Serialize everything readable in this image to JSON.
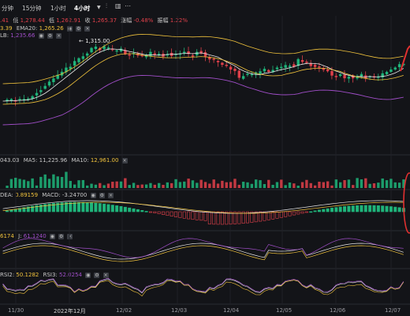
{
  "toolbar": {
    "items": [
      "分钟",
      "15分钟",
      "1小时",
      "4小时"
    ],
    "active_index": 3
  },
  "ohlc": {
    "high": ".41",
    "low_label": "低",
    "low": "1,278.44",
    "close_label": "收",
    "close_prefix": "1,262.91",
    "close": "1,265.37",
    "change_label": "涨幅",
    "change": "-0.48%",
    "amp_label": "振幅",
    "amp": "1.22%"
  },
  "main_indicators": {
    "ema_prev": "3.39",
    "ema20_label": "EMA20:",
    "ema20": "1,265.26",
    "lb_label": "LB:",
    "lb": "1,235.66",
    "peak_label": "1,315.00"
  },
  "volume": {
    "v0": "043.03",
    "ma5_label": "MA5:",
    "ma5": "11,225.96",
    "ma10_label": "MA10:",
    "ma10": "12,961.00"
  },
  "macd": {
    "dea_label": "DEA:",
    "dea": "0.89159",
    "macd_label": "MACD:",
    "macd": "-3.24700"
  },
  "kdj": {
    "v0": "6174",
    "j_label": "J:",
    "j": "61.1240"
  },
  "rsi": {
    "rsi2_label": "RSI2:",
    "rsi2": "50.1282",
    "rsi3_label": "RSI3:",
    "rsi3": "52.0254"
  },
  "x_axis": [
    "11/30",
    "2022年12月",
    "12/02",
    "12/03",
    "12/04",
    "12/05",
    "12/06",
    "12/07"
  ],
  "colors": {
    "up": "#1fb47a",
    "down": "#e0404a",
    "background": "#131418",
    "yellow": "#f0c23c",
    "purple": "#a04ec8",
    "white": "#e8e8e8",
    "annotation_red": "#e03030"
  },
  "icons": [
    "eye-icon",
    "gear-icon",
    "close-icon"
  ]
}
